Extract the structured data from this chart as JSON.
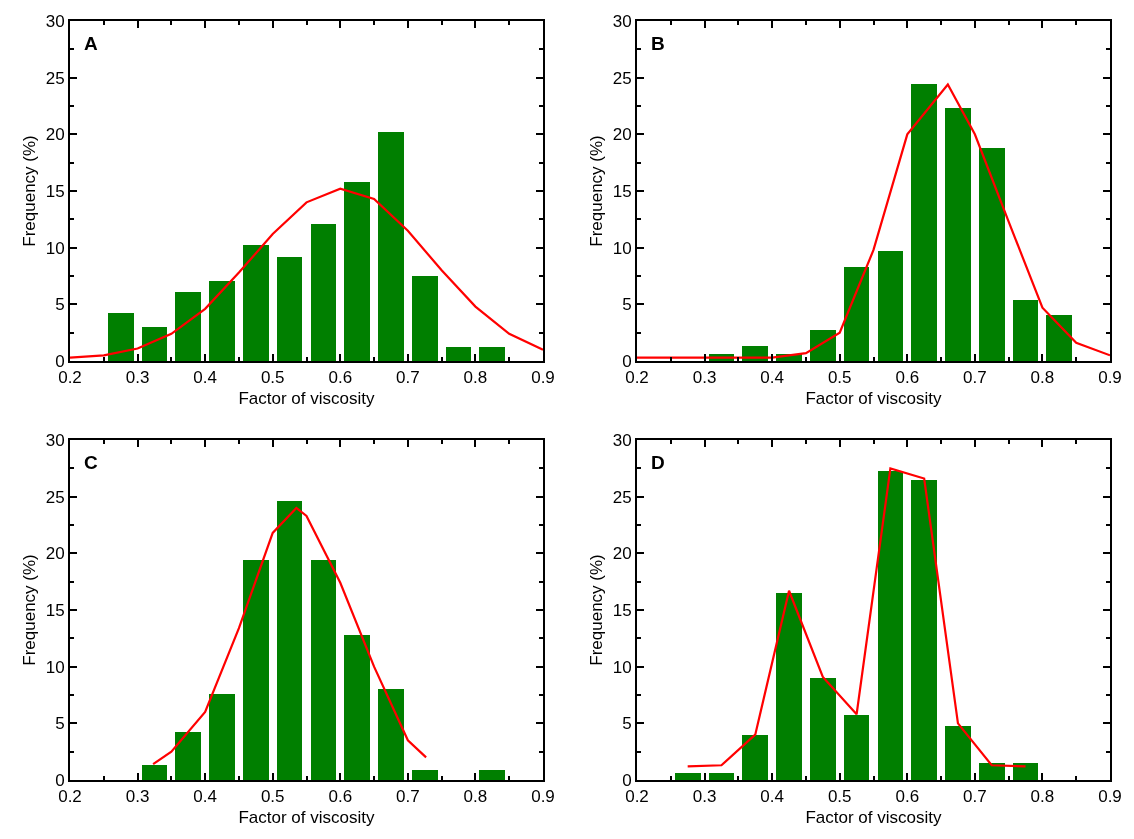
{
  "chart_data": [
    {
      "type": "histogram",
      "title": "A",
      "xlabel": "Factor of viscosity",
      "ylabel": "Frequency (%)",
      "bins": [
        0.25,
        0.3,
        0.35,
        0.4,
        0.45,
        0.5,
        0.55,
        0.6,
        0.65,
        0.7,
        0.75,
        0.8,
        0.85
      ],
      "values": [
        4.2,
        3.0,
        6.1,
        7.1,
        10.2,
        9.2,
        12.1,
        15.8,
        20.2,
        7.5,
        1.2,
        1.2
      ],
      "color": "#007f00",
      "series": [
        {
          "type": "line",
          "color": "#ff0000",
          "x": [
            0.2,
            0.25,
            0.3,
            0.35,
            0.4,
            0.45,
            0.5,
            0.55,
            0.6,
            0.65,
            0.7,
            0.75,
            0.8,
            0.85,
            0.9
          ],
          "values": [
            0.3,
            0.5,
            1.1,
            2.4,
            4.6,
            7.8,
            11.2,
            14.0,
            15.2,
            14.3,
            11.5,
            8.0,
            4.8,
            2.4,
            1.0
          ]
        }
      ],
      "xlim": [
        0.2,
        0.9
      ],
      "xticks": [
        0.2,
        0.3,
        0.4,
        0.5,
        0.6,
        0.7,
        0.8,
        0.9
      ],
      "ylim": [
        0,
        30
      ],
      "yticks": [
        0,
        5,
        10,
        15,
        20,
        25,
        30
      ],
      "grid": false
    },
    {
      "type": "histogram",
      "title": "B",
      "xlabel": "Factor of viscosity",
      "ylabel": "Frequency (%)",
      "bins": [
        0.3,
        0.35,
        0.4,
        0.45,
        0.5,
        0.55,
        0.6,
        0.65,
        0.7,
        0.75,
        0.8,
        0.85
      ],
      "values": [
        0.6,
        1.3,
        0.6,
        2.7,
        8.3,
        9.7,
        24.4,
        22.3,
        18.8,
        5.4,
        4.1
      ],
      "color": "#007f00",
      "series": [
        {
          "type": "line",
          "color": "#ff0000",
          "x": [
            0.2,
            0.3,
            0.4,
            0.45,
            0.5,
            0.55,
            0.6,
            0.66,
            0.7,
            0.75,
            0.8,
            0.85,
            0.9
          ],
          "values": [
            0.3,
            0.3,
            0.3,
            0.7,
            2.5,
            9.8,
            20.0,
            24.4,
            20.0,
            12.3,
            4.7,
            1.6,
            0.5
          ]
        }
      ],
      "xlim": [
        0.2,
        0.9
      ],
      "xticks": [
        0.2,
        0.3,
        0.4,
        0.5,
        0.6,
        0.7,
        0.8,
        0.9
      ],
      "ylim": [
        0,
        30
      ],
      "yticks": [
        0,
        5,
        10,
        15,
        20,
        25,
        30
      ],
      "grid": false
    },
    {
      "type": "histogram",
      "title": "C",
      "xlabel": "Factor of viscosity",
      "ylabel": "Frequency (%)",
      "bins": [
        0.3,
        0.35,
        0.4,
        0.45,
        0.5,
        0.55,
        0.6,
        0.65,
        0.7,
        0.75,
        0.8,
        0.85
      ],
      "values": [
        1.3,
        4.2,
        7.6,
        19.4,
        24.6,
        19.4,
        12.8,
        8.0,
        0.9,
        0,
        0.9
      ],
      "color": "#007f00",
      "series": [
        {
          "type": "line",
          "color": "#ff0000",
          "x": [
            0.323,
            0.35,
            0.4,
            0.45,
            0.5,
            0.535,
            0.55,
            0.6,
            0.65,
            0.7,
            0.727
          ],
          "values": [
            1.4,
            2.5,
            6.0,
            13.4,
            21.8,
            24.0,
            23.3,
            17.4,
            10.0,
            3.5,
            2.0
          ]
        }
      ],
      "xlim": [
        0.2,
        0.9
      ],
      "xticks": [
        0.2,
        0.3,
        0.4,
        0.5,
        0.6,
        0.7,
        0.8,
        0.9
      ],
      "ylim": [
        0,
        30
      ],
      "yticks": [
        0,
        5,
        10,
        15,
        20,
        25,
        30
      ],
      "grid": false
    },
    {
      "type": "histogram",
      "title": "D",
      "xlabel": "Factor of viscosity",
      "ylabel": "Frequency (%)",
      "bins": [
        0.25,
        0.3,
        0.35,
        0.4,
        0.45,
        0.5,
        0.55,
        0.6,
        0.65,
        0.7,
        0.75,
        0.8
      ],
      "values": [
        0.6,
        0.6,
        4.0,
        16.5,
        9.0,
        5.7,
        27.3,
        26.5,
        4.8,
        1.5,
        1.5
      ],
      "color": "#007f00",
      "series": [
        {
          "type": "line",
          "color": "#ff0000",
          "x": [
            0.275,
            0.325,
            0.375,
            0.425,
            0.475,
            0.525,
            0.575,
            0.625,
            0.675,
            0.725,
            0.775
          ],
          "values": [
            1.2,
            1.3,
            4.0,
            16.7,
            9.1,
            5.8,
            27.5,
            26.6,
            5.0,
            1.3,
            1.2
          ]
        }
      ],
      "xlim": [
        0.2,
        0.9
      ],
      "xticks": [
        0.2,
        0.3,
        0.4,
        0.5,
        0.6,
        0.7,
        0.8,
        0.9
      ],
      "ylim": [
        0,
        30
      ],
      "yticks": [
        0,
        5,
        10,
        15,
        20,
        25,
        30
      ],
      "grid": false
    }
  ]
}
